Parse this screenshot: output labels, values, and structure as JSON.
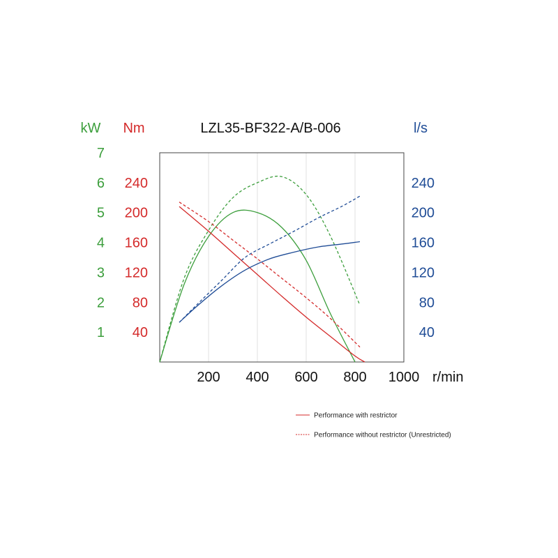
{
  "chart_data": {
    "type": "line",
    "title": "LZL35-BF322-A/B-006",
    "x_unit": "r/min",
    "x_ticks": [
      200,
      400,
      600,
      800,
      1000
    ],
    "xlim": [
      0,
      1000
    ],
    "colors": {
      "power": "#3c9e3c",
      "torque": "#d42a2a",
      "flow": "#1f4c96"
    },
    "axes": {
      "power": {
        "unit": "kW",
        "ticks": [
          1,
          2,
          3,
          4,
          5,
          6,
          7
        ],
        "ylim": [
          0,
          7
        ]
      },
      "torque": {
        "unit": "Nm",
        "ticks": [
          40,
          80,
          120,
          160,
          200,
          240
        ],
        "ylim": [
          0,
          280
        ]
      },
      "flow": {
        "unit": "l/s",
        "ticks": [
          40,
          80,
          120,
          160,
          200,
          240
        ],
        "ylim": [
          0,
          280
        ]
      }
    },
    "series": [
      {
        "quantity": "power",
        "style": "solid",
        "axis": "power",
        "x": [
          0,
          100,
          200,
          300,
          400,
          500,
          600,
          700,
          800
        ],
        "y": [
          0,
          2.6,
          4.2,
          5.0,
          5.0,
          4.5,
          3.4,
          1.6,
          0
        ]
      },
      {
        "quantity": "power",
        "style": "dashed",
        "axis": "power",
        "x": [
          0,
          100,
          200,
          300,
          400,
          500,
          600,
          700,
          820
        ],
        "y": [
          0,
          2.8,
          4.4,
          5.5,
          6.0,
          6.2,
          5.6,
          4.2,
          1.9
        ]
      },
      {
        "quantity": "torque",
        "style": "solid",
        "axis": "torque",
        "x": [
          80,
          200,
          300,
          400,
          500,
          600,
          700,
          800,
          840
        ],
        "y": [
          208,
          175,
          146,
          117,
          88,
          60,
          34,
          8,
          0
        ]
      },
      {
        "quantity": "torque",
        "style": "dashed",
        "axis": "torque",
        "x": [
          80,
          200,
          300,
          400,
          500,
          600,
          700,
          820
        ],
        "y": [
          214,
          188,
          163,
          138,
          112,
          86,
          58,
          20
        ]
      },
      {
        "quantity": "flow",
        "style": "solid",
        "axis": "flow",
        "x": [
          80,
          150,
          250,
          350,
          450,
          550,
          650,
          750,
          820
        ],
        "y": [
          53,
          74,
          101,
          123,
          138,
          147,
          154,
          158,
          161
        ]
      },
      {
        "quantity": "flow",
        "style": "dashed",
        "axis": "flow",
        "x": [
          80,
          150,
          250,
          350,
          450,
          550,
          650,
          750,
          820
        ],
        "y": [
          53,
          76,
          108,
          140,
          158,
          175,
          193,
          209,
          222
        ]
      }
    ],
    "legend": {
      "position": "bottom-right",
      "items": [
        {
          "label": "Performance with restrictor",
          "style": "solid",
          "color": "#d42a2a"
        },
        {
          "label": "Performance without restrictor (Unrestricted)",
          "style": "dashed",
          "color": "#d42a2a"
        }
      ]
    },
    "grid": true
  }
}
